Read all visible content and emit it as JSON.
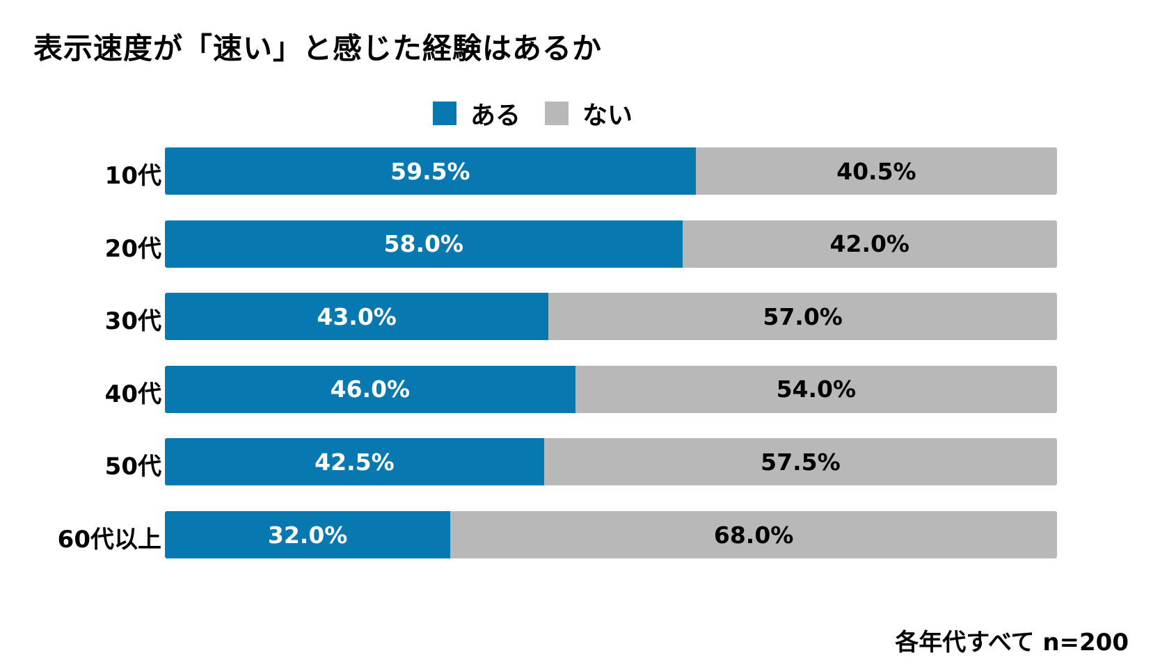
{
  "chart_data": {
    "type": "bar",
    "orientation": "horizontal",
    "stacked": true,
    "percent_stacked": true,
    "title": "表示速度が「速い」と感じた経験はあるか",
    "categories": [
      "10代",
      "20代",
      "30代",
      "40代",
      "50代",
      "60代以上"
    ],
    "series": [
      {
        "name": "ある",
        "color": "#0878b0",
        "label_color": "#ffffff",
        "values": [
          59.5,
          58.0,
          43.0,
          46.0,
          42.5,
          32.0
        ],
        "labels": [
          "59.5%",
          "58.0%",
          "43.0%",
          "46.0%",
          "42.5%",
          "32.0%"
        ]
      },
      {
        "name": "ない",
        "color": "#b8b8b8",
        "label_color": "#000000",
        "values": [
          40.5,
          42.0,
          57.0,
          54.0,
          57.5,
          68.0
        ],
        "labels": [
          "40.5%",
          "42.0%",
          "57.0%",
          "54.0%",
          "57.5%",
          "68.0%"
        ]
      }
    ],
    "xlim": [
      0,
      100
    ],
    "legend_position": "top-center",
    "grid": false,
    "footnote": "各年代すべて n=200"
  }
}
